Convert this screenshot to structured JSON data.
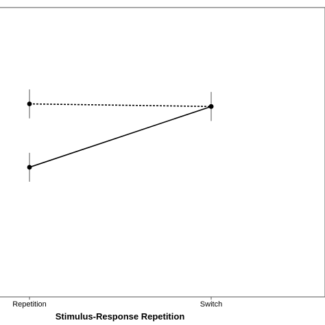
{
  "chart_data": {
    "type": "line",
    "title": "",
    "xlabel": "Stimulus-Response Repetition",
    "ylabel": "",
    "categories": [
      "Repetition",
      "Switch"
    ],
    "ylim": [
      0,
      1
    ],
    "grid": false,
    "series": [
      {
        "line_style": "dotted",
        "values": [
          0.667,
          0.658
        ],
        "error": [
          0.05,
          0.05
        ],
        "color": "#000000"
      },
      {
        "line_style": "solid",
        "values": [
          0.448,
          0.658
        ],
        "error": [
          0.05,
          0.05
        ],
        "color": "#000000"
      }
    ]
  }
}
